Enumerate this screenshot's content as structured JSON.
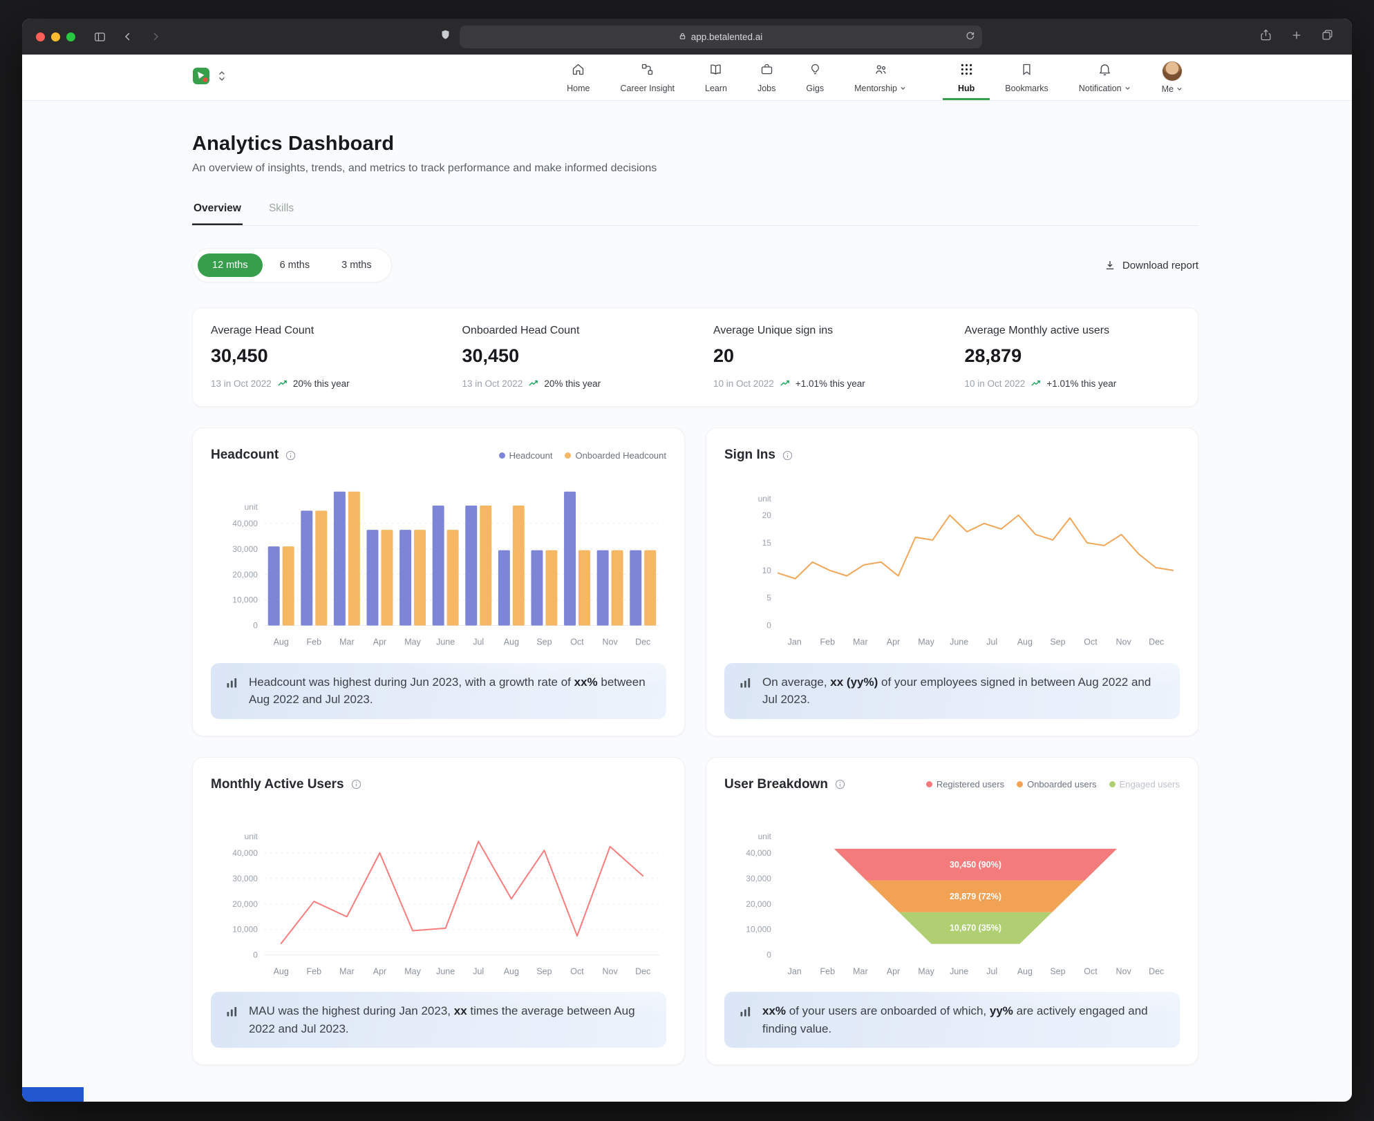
{
  "browser": {
    "url": "app.betalented.ai",
    "traffic_lights": [
      "#ff5f57",
      "#febc2e",
      "#28c840"
    ]
  },
  "navbar": {
    "items": [
      {
        "label": "Home"
      },
      {
        "label": "Career Insight"
      },
      {
        "label": "Learn"
      },
      {
        "label": "Jobs"
      },
      {
        "label": "Gigs"
      },
      {
        "label": "Mentorship"
      }
    ],
    "right_items": [
      {
        "label": "Hub",
        "active": true
      },
      {
        "label": "Bookmarks"
      },
      {
        "label": "Notification"
      },
      {
        "label": "Me"
      }
    ]
  },
  "page": {
    "title": "Analytics Dashboard",
    "subtitle": "An overview of insights, trends, and metrics to track performance and make informed decisions",
    "tabs": [
      {
        "label": "Overview",
        "active": true
      },
      {
        "label": "Skills",
        "active": false
      }
    ],
    "range_pills": [
      {
        "label": "12 mths",
        "active": true
      },
      {
        "label": "6 mths",
        "active": false
      },
      {
        "label": "3 mths",
        "active": false
      }
    ],
    "download_label": "Download report",
    "accent_color": "#379e4c",
    "trend_color": "#1ca45c"
  },
  "stats": [
    {
      "label": "Average Head Count",
      "value": "30,450",
      "period": "13 in Oct 2022",
      "trend": "20% this year"
    },
    {
      "label": "Onboarded Head Count",
      "value": "30,450",
      "period": "13 in Oct 2022",
      "trend": "20% this year"
    },
    {
      "label": "Average Unique sign ins",
      "value": "20",
      "period": "10 in Oct 2022",
      "trend": "+1.01% this year"
    },
    {
      "label": "Average Monthly active users",
      "value": "28,879",
      "period": "10 in Oct 2022",
      "trend": "+1.01% this year"
    }
  ],
  "chart_data": [
    {
      "type": "bar",
      "title": "Headcount",
      "unit_label": "unit",
      "categories": [
        "Aug",
        "Feb",
        "Mar",
        "Apr",
        "May",
        "June",
        "Jul",
        "Aug",
        "Sep",
        "Oct",
        "Nov",
        "Dec"
      ],
      "series": [
        {
          "name": "Headcount",
          "color": "#7C85D6",
          "values": [
            31000,
            45000,
            52500,
            37500,
            37500,
            47000,
            47000,
            29500,
            29500,
            52500,
            29500,
            29500
          ]
        },
        {
          "name": "Onboarded Headcount",
          "color": "#F5B763",
          "values": [
            31000,
            45000,
            52500,
            37500,
            37500,
            37500,
            47000,
            47000,
            29500,
            29500,
            29500,
            29500
          ]
        }
      ],
      "yticks": [
        0,
        10000,
        20000,
        30000,
        40000
      ],
      "ylim": [
        0,
        56000
      ],
      "grid": true,
      "legend_position": "top-right",
      "insight": [
        {
          "text": "Headcount was highest during Jun 2023, with a growth rate of "
        },
        {
          "text": "xx%",
          "bold": true
        },
        {
          "text": " between Aug 2022 and Jul 2023."
        }
      ]
    },
    {
      "type": "line",
      "title": "Sign Ins",
      "unit_label": "unit",
      "color": "#F2A658",
      "categories": [
        "Jan",
        "Feb",
        "Mar",
        "Apr",
        "May",
        "June",
        "Jul",
        "Aug",
        "Sep",
        "Oct",
        "Nov",
        "Dec"
      ],
      "values": [
        9.5,
        8.5,
        11.5,
        10,
        9,
        11,
        11.5,
        9,
        16,
        15.5,
        20,
        17,
        18.5,
        17.5,
        20,
        16.5,
        15.5,
        19.5,
        15,
        14.5,
        16.5,
        13,
        10.5,
        10
      ],
      "yticks": [
        0,
        5,
        10,
        15,
        20
      ],
      "ylim": [
        0,
        20
      ],
      "grid": false,
      "align": "edge",
      "insight": [
        {
          "text": "On average, "
        },
        {
          "text": "xx (yy%)",
          "bold": true
        },
        {
          "text": " of your employees signed in between Aug 2022 and Jul 2023."
        }
      ]
    },
    {
      "type": "line",
      "title": "Monthly Active Users",
      "unit_label": "unit",
      "color": "#FA7D7D",
      "categories": [
        "Aug",
        "Feb",
        "Mar",
        "Apr",
        "May",
        "June",
        "Jul",
        "Aug",
        "Sep",
        "Oct",
        "Nov",
        "Dec"
      ],
      "values": [
        4500,
        21000,
        15000,
        40000,
        9500,
        10500,
        44500,
        22000,
        41000,
        7500,
        42500,
        31000
      ],
      "yticks": [
        0,
        10000,
        20000,
        30000,
        40000
      ],
      "ylim": [
        0,
        48000
      ],
      "grid": true,
      "align": "center",
      "insight": [
        {
          "text": "MAU was the highest during Jan 2023, "
        },
        {
          "text": "xx",
          "bold": true
        },
        {
          "text": " times the average between Aug 2022 and Jul 2023."
        }
      ]
    },
    {
      "type": "funnel",
      "title": "User Breakdown",
      "unit_label": "unit",
      "categories": [
        "Jan",
        "Feb",
        "Mar",
        "Apr",
        "May",
        "June",
        "Jul",
        "Aug",
        "Sep",
        "Oct",
        "Nov",
        "Dec"
      ],
      "yticks": [
        0,
        10000,
        20000,
        30000,
        40000
      ],
      "grid": false,
      "legend_position": "top-right",
      "legend": [
        {
          "name": "Registered users",
          "color": "#F47B7B",
          "muted": false
        },
        {
          "name": "Onboarded users",
          "color": "#F2A254",
          "muted": false
        },
        {
          "name": "Engaged users",
          "color": "#AFCF72",
          "muted": true
        }
      ],
      "segments": [
        {
          "label": "30,450 (90%)",
          "value": 30450,
          "color": "#F47B7B"
        },
        {
          "label": "28,879 (72%)",
          "value": 28879,
          "color": "#F2A254"
        },
        {
          "label": "10,670 (35%)",
          "value": 10670,
          "color": "#AFCF72"
        }
      ],
      "insight": [
        {
          "text": "xx%",
          "bold": true
        },
        {
          "text": " of your users are onboarded of which, "
        },
        {
          "text": "yy%",
          "bold": true
        },
        {
          "text": " are actively engaged and finding value."
        }
      ]
    }
  ]
}
